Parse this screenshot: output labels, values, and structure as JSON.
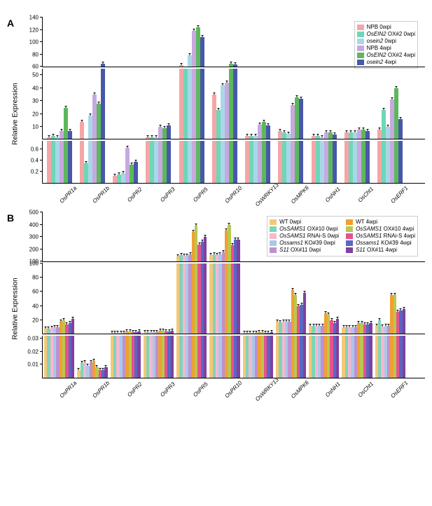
{
  "panelA": {
    "label": "A",
    "ylabel": "Relative Expression",
    "categories": [
      "OsPR1a",
      "OsPR1b",
      "OsPR2",
      "OsPR3",
      "OsPR5",
      "OsPR10",
      "OsWRKY13",
      "OsMPK6",
      "OsNH1",
      "OsCht1",
      "OsERF1"
    ],
    "series": [
      {
        "name": "NPB 0wpi",
        "color": "#f4a6a6"
      },
      {
        "name": "OsEIN2 OX#2 0wpi",
        "color": "#6fd6b8",
        "italic": true
      },
      {
        "name": "osein2 0wpi",
        "color": "#a8d8e8",
        "italic": true
      },
      {
        "name": "NPB 4wpi",
        "color": "#c8a8e0"
      },
      {
        "name": "OsEIN2 OX#2 4wpi",
        "color": "#5cb85c",
        "italic": true
      },
      {
        "name": "osein2 4wpi",
        "color": "#4858a8",
        "italic": true
      }
    ],
    "segments": [
      {
        "height": 70,
        "ymin": 60,
        "ymax": 140,
        "ticks": [
          60,
          80,
          100,
          120,
          140
        ]
      },
      {
        "height": 100,
        "ymin": 1,
        "ymax": 55,
        "ticks": [
          10,
          20,
          30,
          40,
          50
        ]
      },
      {
        "height": 60,
        "ymin": 0,
        "ymax": 0.75,
        "ticks": [
          0.2,
          0.4,
          0.6
        ]
      }
    ],
    "data": [
      [
        2,
        3,
        2,
        7,
        25,
        7
      ],
      [
        14,
        0.35,
        19,
        35,
        28,
        65
      ],
      [
        0.12,
        0.15,
        0.18,
        0.62,
        0.32,
        0.38
      ],
      [
        2,
        2,
        2,
        10,
        9,
        11
      ],
      [
        62,
        58,
        78,
        118,
        124,
        108
      ],
      [
        35,
        23,
        42,
        44,
        65,
        64
      ],
      [
        3,
        3,
        3,
        12,
        14,
        11
      ],
      [
        7,
        6,
        5,
        27,
        33,
        32
      ],
      [
        3,
        3,
        2,
        6,
        6,
        4
      ],
      [
        6,
        6,
        6,
        8,
        8,
        7
      ],
      [
        8,
        23,
        10,
        31,
        40,
        16
      ]
    ]
  },
  "panelB": {
    "label": "B",
    "ylabel": "Relative Expression",
    "categories": [
      "OsPR1a",
      "OsPR1b",
      "OsPR2",
      "OsPR3",
      "OsPR5",
      "OsPR10",
      "OsWRKY13",
      "OsMPK6",
      "OsNH1",
      "OsCht1",
      "OsERF1"
    ],
    "series": [
      {
        "name": "WT 0wpi",
        "color": "#f5c878"
      },
      {
        "name": "OsSAMS1 OX#10 0wpi",
        "color": "#7fd4b8",
        "italic": true
      },
      {
        "name": "OsSAMS1 RNAi-S 0wpi",
        "color": "#f5b8d0",
        "italic": true
      },
      {
        "name": "Ossams1 KO#39 0wpi",
        "color": "#a8c8e8",
        "italic": true
      },
      {
        "name": "S11 OX#11 0wpi",
        "color": "#c090d0",
        "italic": true
      },
      {
        "name": "WT 4wpi",
        "color": "#f0a030"
      },
      {
        "name": "OsSAMS1 OX#10 4wpi",
        "color": "#b8c850",
        "italic": true
      },
      {
        "name": "OsSAMS1 RNAi-S 4wpi",
        "color": "#e85090",
        "italic": true
      },
      {
        "name": "Ossams1 KO#39 4wpi",
        "color": "#5868c0",
        "italic": true
      },
      {
        "name": "S11 OX#11 4wpi",
        "color": "#8040a0",
        "italic": true
      }
    ],
    "segments": [
      {
        "height": 70,
        "ymin": 100,
        "ymax": 500,
        "ticks": [
          100,
          200,
          300,
          400,
          500
        ]
      },
      {
        "height": 100,
        "ymin": 1,
        "ymax": 100,
        "ticks": [
          20,
          40,
          60,
          80,
          100
        ]
      },
      {
        "height": 60,
        "ymin": 0,
        "ymax": 0.032,
        "ticks": [
          0.01,
          0.02,
          0.03
        ]
      }
    ],
    "data": [
      [
        8,
        8,
        9,
        10,
        10,
        18,
        20,
        14,
        16,
        22
      ],
      [
        0.006,
        0.011,
        0.012,
        0.009,
        0.012,
        0.013,
        0.008,
        0.006,
        0.006,
        0.008
      ],
      [
        2,
        2,
        2,
        2,
        2,
        4,
        4,
        3,
        3,
        4
      ],
      [
        3,
        3,
        3,
        3,
        3,
        5,
        5,
        4,
        4,
        5
      ],
      [
        140,
        150,
        145,
        145,
        155,
        340,
        390,
        240,
        260,
        300
      ],
      [
        150,
        160,
        150,
        160,
        175,
        350,
        395,
        230,
        280,
        280
      ],
      [
        2,
        2,
        2,
        2,
        2,
        3,
        3,
        2,
        2,
        3
      ],
      [
        18,
        17,
        18,
        18,
        18,
        62,
        55,
        40,
        42,
        58
      ],
      [
        12,
        12,
        12,
        12,
        12,
        30,
        28,
        20,
        16,
        22
      ],
      [
        10,
        10,
        10,
        10,
        10,
        16,
        16,
        14,
        14,
        16
      ],
      [
        12,
        20,
        11,
        12,
        12,
        55,
        55,
        32,
        34,
        36
      ]
    ]
  }
}
